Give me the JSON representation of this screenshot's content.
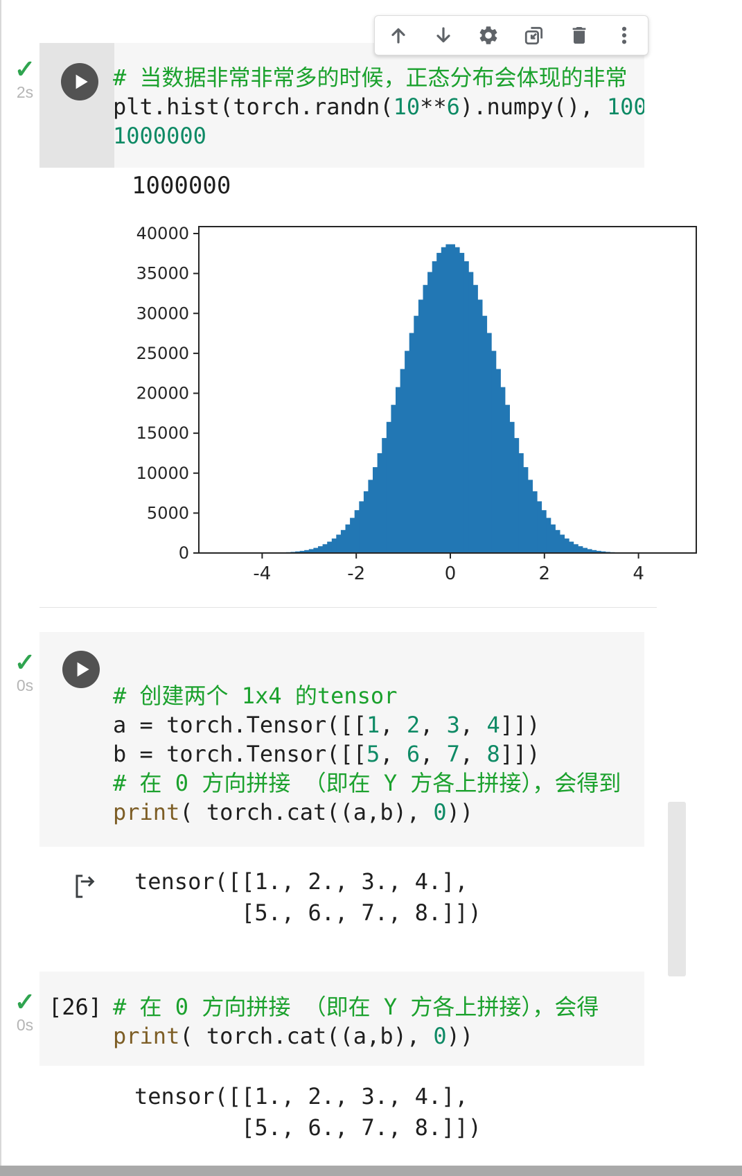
{
  "toolbar": {
    "icons": [
      "move-cell-up-icon",
      "move-cell-down-icon",
      "cell-settings-icon",
      "open-cell-in-window-icon",
      "delete-cell-icon",
      "more-cell-actions-icon"
    ]
  },
  "cells": [
    {
      "check": "✓",
      "time": "2s",
      "lines": [
        {
          "segs": [
            {
              "t": "# 当数据非常非常多的时候，正态分布会体现的非常",
              "c": "com"
            }
          ]
        },
        {
          "segs": [
            {
              "t": "plt.hist(torch.randn(",
              "c": "code"
            },
            {
              "t": "10",
              "c": "num"
            },
            {
              "t": "**",
              "c": "code"
            },
            {
              "t": "6",
              "c": "num"
            },
            {
              "t": ").numpy(), ",
              "c": "code"
            },
            {
              "t": "100",
              "c": "num"
            }
          ]
        },
        {
          "segs": [
            {
              "t": "1000000",
              "c": "num"
            }
          ]
        }
      ]
    },
    {
      "check": "✓",
      "time": "0s",
      "lines": [
        {
          "segs": [
            {
              "t": "# 创建两个 1x4 的tensor",
              "c": "com"
            }
          ]
        },
        {
          "segs": [
            {
              "t": "a = torch.Tensor([[",
              "c": "code"
            },
            {
              "t": "1",
              "c": "num"
            },
            {
              "t": ", ",
              "c": "code"
            },
            {
              "t": "2",
              "c": "num"
            },
            {
              "t": ", ",
              "c": "code"
            },
            {
              "t": "3",
              "c": "num"
            },
            {
              "t": ", ",
              "c": "code"
            },
            {
              "t": "4",
              "c": "num"
            },
            {
              "t": "]])",
              "c": "code"
            }
          ]
        },
        {
          "segs": [
            {
              "t": "b = torch.Tensor([[",
              "c": "code"
            },
            {
              "t": "5",
              "c": "num"
            },
            {
              "t": ", ",
              "c": "code"
            },
            {
              "t": "6",
              "c": "num"
            },
            {
              "t": ", ",
              "c": "code"
            },
            {
              "t": "7",
              "c": "num"
            },
            {
              "t": ", ",
              "c": "code"
            },
            {
              "t": "8",
              "c": "num"
            },
            {
              "t": "]])",
              "c": "code"
            }
          ]
        },
        {
          "segs": [
            {
              "t": "# 在 0 方向拼接 （即在 Y 方各上拼接），会得到",
              "c": "com"
            }
          ]
        },
        {
          "segs": [
            {
              "t": "print",
              "c": "fn"
            },
            {
              "t": "( torch.cat((a,b), ",
              "c": "code"
            },
            {
              "t": "0",
              "c": "num"
            },
            {
              "t": "))",
              "c": "code"
            }
          ]
        }
      ]
    },
    {
      "check": "✓",
      "time": "0s",
      "exec": "[26]",
      "lines": [
        {
          "segs": [
            {
              "t": "# 在 0 方向拼接 （即在 Y 方各上拼接），会得",
              "c": "com"
            }
          ]
        },
        {
          "segs": [
            {
              "t": "print",
              "c": "fn"
            },
            {
              "t": "( torch.cat((a,b), ",
              "c": "code"
            },
            {
              "t": "0",
              "c": "num"
            },
            {
              "t": "))",
              "c": "code"
            }
          ]
        }
      ]
    }
  ],
  "outputs": {
    "cell1_text": "1000000",
    "tensor1": {
      "lines": [
        "tensor([[1., 2., 3., 4.],",
        "        [5., 6., 7., 8.]])"
      ]
    },
    "tensor2": {
      "lines": [
        "tensor([[1., 2., 3., 4.],",
        "        [5., 6., 7., 8.]])"
      ]
    }
  },
  "chart_data": {
    "type": "bar",
    "title": "",
    "xlabel": "",
    "ylabel": "",
    "x_ticks": [
      -4,
      -2,
      0,
      2,
      4
    ],
    "y_ticks": [
      0,
      5000,
      10000,
      15000,
      20000,
      25000,
      30000,
      35000,
      40000
    ],
    "xlim": [
      -5.35,
      5.23
    ],
    "ylim": [
      0,
      40870
    ],
    "grid": false,
    "legend": "none",
    "bar_color": "#2277b4",
    "bin_start": -4.85,
    "bin_width": 0.097,
    "counts": [
      0,
      1,
      1,
      2,
      2,
      4,
      5,
      8,
      12,
      17,
      25,
      36,
      52,
      73,
      103,
      143,
      197,
      269,
      364,
      487,
      645,
      847,
      1102,
      1422,
      1817,
      2298,
      2881,
      3576,
      4399,
      5359,
      6469,
      7734,
      9160,
      10751,
      12497,
      14392,
      16418,
      18554,
      20771,
      23036,
      25310,
      27546,
      29700,
      31722,
      33564,
      35181,
      36530,
      37576,
      38290,
      38652,
      38652,
      38290,
      37576,
      36530,
      35181,
      33564,
      31722,
      29700,
      27546,
      25310,
      23036,
      20771,
      18554,
      16418,
      14392,
      12497,
      10751,
      9160,
      7734,
      6469,
      5359,
      4399,
      3576,
      2881,
      2298,
      1817,
      1422,
      1102,
      847,
      645,
      487,
      364,
      269,
      197,
      143,
      103,
      73,
      52,
      36,
      25,
      17,
      12,
      8,
      5,
      4,
      2,
      2,
      1,
      1,
      0
    ]
  }
}
